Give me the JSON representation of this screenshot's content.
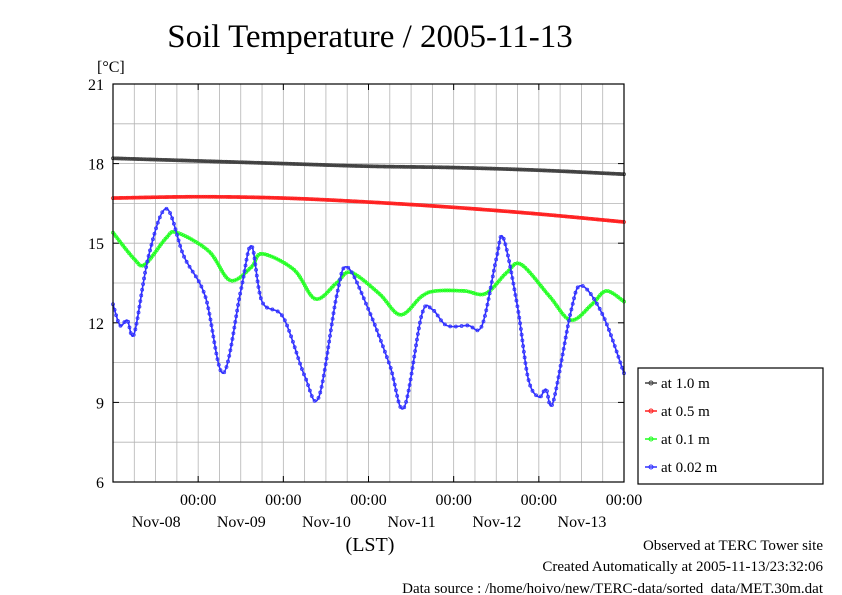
{
  "chart_data": {
    "type": "line",
    "title": "Soil Temperature / 2005-11-13",
    "ylabel": "[°C]",
    "xlabel": "(LST)",
    "ylim": [
      6,
      21
    ],
    "yticks": [
      6,
      9,
      12,
      15,
      18,
      21
    ],
    "xlim": [
      "2005-11-07 00:00",
      "2005-11-13 00:00"
    ],
    "xticks": [
      {
        "time": "2005-11-08 00:00",
        "label": "00:00",
        "day": "Nov-08"
      },
      {
        "time": "2005-11-09 00:00",
        "label": "00:00",
        "day": "Nov-09"
      },
      {
        "time": "2005-11-10 00:00",
        "label": "00:00",
        "day": "Nov-10"
      },
      {
        "time": "2005-11-11 00:00",
        "label": "00:00",
        "day": "Nov-11"
      },
      {
        "time": "2005-11-12 00:00",
        "label": "00:00",
        "day": "Nov-12"
      },
      {
        "time": "2005-11-13 00:00",
        "label": "00:00",
        "day": "Nov-13"
      }
    ],
    "grid": true,
    "legend_position": "right",
    "series": [
      {
        "name": "at 1.0 m",
        "color": "#404040",
        "points": [
          [
            "2005-11-07 00:00",
            18.2
          ],
          [
            "2005-11-08 00:00",
            18.1
          ],
          [
            "2005-11-09 00:00",
            18.0
          ],
          [
            "2005-11-10 00:00",
            17.9
          ],
          [
            "2005-11-11 00:00",
            17.85
          ],
          [
            "2005-11-12 00:00",
            17.75
          ],
          [
            "2005-11-13 00:00",
            17.6
          ]
        ]
      },
      {
        "name": "at 0.5 m",
        "color": "#ff2020",
        "points": [
          [
            "2005-11-07 00:00",
            16.7
          ],
          [
            "2005-11-08 00:00",
            16.75
          ],
          [
            "2005-11-09 00:00",
            16.7
          ],
          [
            "2005-11-10 00:00",
            16.55
          ],
          [
            "2005-11-11 00:00",
            16.35
          ],
          [
            "2005-11-12 00:00",
            16.1
          ],
          [
            "2005-11-13 00:00",
            15.8
          ]
        ]
      },
      {
        "name": "at 0.1 m",
        "color": "#20ff20",
        "points": [
          [
            "2005-11-07 00:00",
            15.4
          ],
          [
            "2005-11-07 06:00",
            14.4
          ],
          [
            "2005-11-07 09:00",
            14.2
          ],
          [
            "2005-11-07 15:00",
            15.2
          ],
          [
            "2005-11-07 18:00",
            15.4
          ],
          [
            "2005-11-08 03:00",
            14.7
          ],
          [
            "2005-11-08 09:00",
            13.6
          ],
          [
            "2005-11-08 15:00",
            14.1
          ],
          [
            "2005-11-08 18:00",
            14.6
          ],
          [
            "2005-11-09 03:00",
            14.0
          ],
          [
            "2005-11-09 09:00",
            12.9
          ],
          [
            "2005-11-09 15:00",
            13.5
          ],
          [
            "2005-11-09 19:00",
            13.9
          ],
          [
            "2005-11-10 03:00",
            13.1
          ],
          [
            "2005-11-10 09:00",
            12.3
          ],
          [
            "2005-11-10 15:00",
            13.0
          ],
          [
            "2005-11-10 19:00",
            13.2
          ],
          [
            "2005-11-11 03:00",
            13.2
          ],
          [
            "2005-11-11 09:00",
            13.1
          ],
          [
            "2005-11-11 15:00",
            13.9
          ],
          [
            "2005-11-11 19:00",
            14.2
          ],
          [
            "2005-11-12 03:00",
            13.0
          ],
          [
            "2005-11-12 09:00",
            12.1
          ],
          [
            "2005-11-12 15:00",
            12.7
          ],
          [
            "2005-11-12 19:00",
            13.2
          ],
          [
            "2005-11-13 00:00",
            12.8
          ]
        ]
      },
      {
        "name": "at 0.02 m",
        "color": "#3030ff",
        "points": [
          [
            "2005-11-07 00:00",
            12.7
          ],
          [
            "2005-11-07 02:00",
            11.9
          ],
          [
            "2005-11-07 04:00",
            12.1
          ],
          [
            "2005-11-07 06:00",
            11.6
          ],
          [
            "2005-11-07 10:00",
            14.5
          ],
          [
            "2005-11-07 15:00",
            16.3
          ],
          [
            "2005-11-07 20:00",
            14.5
          ],
          [
            "2005-11-08 02:00",
            13.0
          ],
          [
            "2005-11-08 07:00",
            10.1
          ],
          [
            "2005-11-08 12:00",
            13.2
          ],
          [
            "2005-11-08 15:00",
            14.9
          ],
          [
            "2005-11-08 18:00",
            12.8
          ],
          [
            "2005-11-09 00:00",
            12.2
          ],
          [
            "2005-11-09 06:00",
            10.0
          ],
          [
            "2005-11-09 10:00",
            9.2
          ],
          [
            "2005-11-09 15:00",
            13.0
          ],
          [
            "2005-11-09 18:00",
            14.1
          ],
          [
            "2005-11-10 00:00",
            12.5
          ],
          [
            "2005-11-10 06:00",
            10.4
          ],
          [
            "2005-11-10 10:00",
            8.8
          ],
          [
            "2005-11-10 15:00",
            12.3
          ],
          [
            "2005-11-10 18:00",
            12.5
          ],
          [
            "2005-11-10 22:00",
            11.9
          ],
          [
            "2005-11-11 04:00",
            11.9
          ],
          [
            "2005-11-11 08:00",
            11.9
          ],
          [
            "2005-11-11 12:00",
            14.4
          ],
          [
            "2005-11-11 14:00",
            15.2
          ],
          [
            "2005-11-11 18:00",
            12.6
          ],
          [
            "2005-11-11 21:00",
            9.9
          ],
          [
            "2005-11-12 00:00",
            9.2
          ],
          [
            "2005-11-12 02:00",
            9.5
          ],
          [
            "2005-11-12 04:00",
            9.0
          ],
          [
            "2005-11-12 09:00",
            12.4
          ],
          [
            "2005-11-12 12:00",
            13.4
          ],
          [
            "2005-11-12 18:00",
            12.3
          ],
          [
            "2005-11-13 00:00",
            10.1
          ]
        ]
      }
    ]
  },
  "footer": {
    "line1": "Observed at TERC Tower site",
    "line2": "Created Automatically at 2005-11-13/23:32:06",
    "line3": "Data source : /home/hoivo/new/TERC-data/sorted  data/MET.30m.dat"
  }
}
